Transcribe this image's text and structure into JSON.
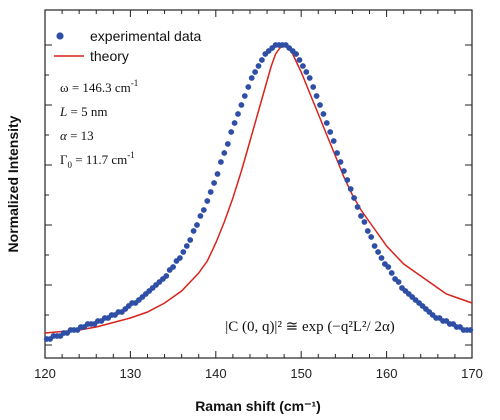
{
  "chart_data": {
    "type": "scatter",
    "xlabel": "Raman shift (cm⁻¹)",
    "ylabel": "Normalized Intensity",
    "xlim": [
      120,
      170
    ],
    "ylim": [
      0,
      1.05
    ],
    "x_ticks": [
      120,
      130,
      140,
      150,
      160,
      170
    ],
    "y_labels_shown": false,
    "grid": false,
    "legend": {
      "placement": "top-left",
      "entries": [
        {
          "label": "experimental data",
          "marker": "circle",
          "color": "#2e4fa5"
        },
        {
          "label": "theory",
          "marker": "line",
          "color": "#d8231b"
        }
      ]
    },
    "parameters": [
      {
        "symbol": "ω",
        "rest": " = 146.3 cm",
        "sup": "-1"
      },
      {
        "symbol": "L",
        "rest": " = 5 nm",
        "sup": ""
      },
      {
        "symbol": "α",
        "rest": " = 13",
        "sup": ""
      },
      {
        "symbol": "Γ",
        "sub": "0",
        "rest": " = 11.7 cm",
        "sup": "-1"
      }
    ],
    "annotation_formula": "|C (0, q)|² ≅ exp (−q²L²/ 2α)",
    "series": [
      {
        "name": "experimental data",
        "style": "points",
        "color": "#2e4fa5",
        "x": [
          120.2,
          120.6,
          121.0,
          121.4,
          121.8,
          122.2,
          122.6,
          123.0,
          123.4,
          123.8,
          124.2,
          124.6,
          125.0,
          125.4,
          125.8,
          126.2,
          126.6,
          127.0,
          127.4,
          127.8,
          128.2,
          128.6,
          129.0,
          129.4,
          129.8,
          130.2,
          130.6,
          131.0,
          131.4,
          131.8,
          132.2,
          132.6,
          133.0,
          133.4,
          133.8,
          134.2,
          134.6,
          135.0,
          135.4,
          135.8,
          136.2,
          136.6,
          137.0,
          137.4,
          137.8,
          138.2,
          138.6,
          139.0,
          139.4,
          139.8,
          140.2,
          140.6,
          141.0,
          141.4,
          141.8,
          142.2,
          142.6,
          143.0,
          143.4,
          143.8,
          144.2,
          144.6,
          145.0,
          145.4,
          145.8,
          146.2,
          146.6,
          147.0,
          147.4,
          147.8,
          148.2,
          148.6,
          149.0,
          149.4,
          149.8,
          150.2,
          150.6,
          151.0,
          151.4,
          151.8,
          152.2,
          152.6,
          153.0,
          153.4,
          153.8,
          154.2,
          154.6,
          155.0,
          155.4,
          155.8,
          156.2,
          156.6,
          157.0,
          157.4,
          157.8,
          158.2,
          158.6,
          159.0,
          159.4,
          159.8,
          160.2,
          160.6,
          161.0,
          161.4,
          161.8,
          162.2,
          162.6,
          163.0,
          163.4,
          163.8,
          164.2,
          164.6,
          165.0,
          165.4,
          165.8,
          166.2,
          166.6,
          167.0,
          167.4,
          167.8,
          168.2,
          168.6,
          169.0,
          169.4,
          169.8
        ],
        "y": [
          0.02,
          0.02,
          0.03,
          0.03,
          0.03,
          0.04,
          0.04,
          0.05,
          0.05,
          0.05,
          0.06,
          0.06,
          0.07,
          0.07,
          0.07,
          0.08,
          0.08,
          0.09,
          0.09,
          0.1,
          0.1,
          0.11,
          0.11,
          0.12,
          0.13,
          0.14,
          0.14,
          0.15,
          0.16,
          0.17,
          0.18,
          0.19,
          0.2,
          0.21,
          0.22,
          0.23,
          0.25,
          0.26,
          0.28,
          0.29,
          0.31,
          0.33,
          0.35,
          0.38,
          0.4,
          0.43,
          0.45,
          0.48,
          0.51,
          0.54,
          0.57,
          0.61,
          0.64,
          0.67,
          0.71,
          0.74,
          0.77,
          0.8,
          0.83,
          0.86,
          0.89,
          0.91,
          0.93,
          0.95,
          0.97,
          0.98,
          0.99,
          1.0,
          1.0,
          1.0,
          1.0,
          0.99,
          0.98,
          0.97,
          0.95,
          0.93,
          0.91,
          0.89,
          0.86,
          0.83,
          0.8,
          0.77,
          0.74,
          0.71,
          0.68,
          0.64,
          0.61,
          0.58,
          0.55,
          0.52,
          0.49,
          0.46,
          0.43,
          0.41,
          0.38,
          0.36,
          0.33,
          0.31,
          0.29,
          0.27,
          0.26,
          0.24,
          0.22,
          0.21,
          0.19,
          0.18,
          0.17,
          0.16,
          0.15,
          0.14,
          0.13,
          0.12,
          0.11,
          0.1,
          0.09,
          0.09,
          0.08,
          0.08,
          0.07,
          0.07,
          0.06,
          0.06,
          0.05,
          0.05,
          0.05
        ]
      },
      {
        "name": "theory",
        "style": "line",
        "color": "#d8231b",
        "x": [
          120,
          122,
          124,
          126,
          128,
          130,
          132,
          134,
          136,
          138,
          139,
          140,
          141,
          142,
          143,
          144,
          145,
          146,
          146.5,
          147,
          147.5,
          148,
          148.5,
          149,
          149.5,
          150,
          151,
          152,
          153,
          154,
          155,
          156,
          157,
          158,
          159,
          160,
          161,
          162,
          163,
          164,
          165,
          166,
          167,
          168,
          169,
          170
        ],
        "y": [
          0.04,
          0.045,
          0.05,
          0.06,
          0.075,
          0.09,
          0.11,
          0.14,
          0.18,
          0.24,
          0.28,
          0.34,
          0.41,
          0.49,
          0.58,
          0.68,
          0.78,
          0.88,
          0.93,
          0.97,
          0.99,
          1.0,
          0.99,
          0.97,
          0.94,
          0.91,
          0.84,
          0.77,
          0.7,
          0.63,
          0.56,
          0.5,
          0.45,
          0.41,
          0.37,
          0.33,
          0.3,
          0.27,
          0.25,
          0.23,
          0.21,
          0.19,
          0.17,
          0.16,
          0.15,
          0.14
        ]
      }
    ]
  }
}
